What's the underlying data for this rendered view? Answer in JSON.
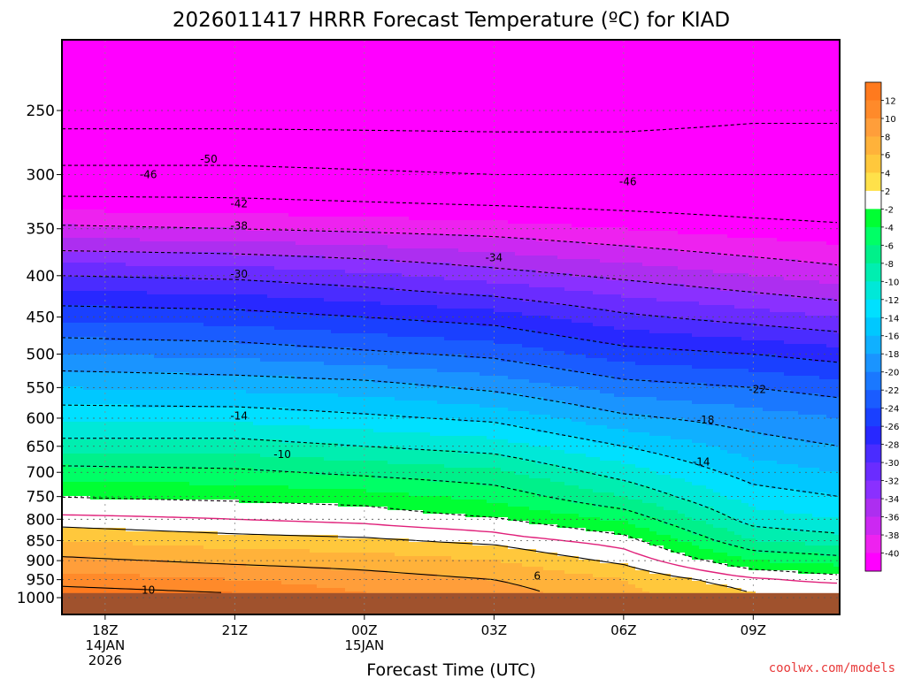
{
  "chart_data": {
    "type": "contour",
    "title": "2026011417 HRRR Forecast Temperature (ºC) for KIAD",
    "xlabel": "Forecast Time (UTC)",
    "credit": "coolwx.com/models",
    "x_ticks": [
      {
        "hour": 0,
        "lines": [
          "18Z",
          "14JAN",
          "2026"
        ]
      },
      {
        "hour": 3,
        "lines": [
          "21Z"
        ]
      },
      {
        "hour": 6,
        "lines": [
          "00Z",
          "15JAN"
        ]
      },
      {
        "hour": 9,
        "lines": [
          "03Z"
        ]
      },
      {
        "hour": 12,
        "lines": [
          "06Z"
        ]
      },
      {
        "hour": 15,
        "lines": [
          "09Z"
        ]
      }
    ],
    "xlim": [
      -1,
      17
    ],
    "y_ticks": [
      250,
      300,
      350,
      400,
      450,
      500,
      550,
      600,
      650,
      700,
      750,
      800,
      850,
      900,
      950,
      1000
    ],
    "ylim_hPa": [
      1030,
      200
    ],
    "ground_hPa": 987,
    "colorbar": {
      "labels": [
        "12",
        "10",
        "8",
        "6",
        "4",
        "2",
        "-2",
        "-4",
        "-6",
        "-8",
        "-10",
        "-12",
        "-14",
        "-16",
        "-18",
        "-20",
        "-22",
        "-24",
        "-26",
        "-28",
        "-30",
        "-32",
        "-34",
        "-36",
        "-38",
        "-40"
      ],
      "colors": [
        "#ff7a1e",
        "#ff8a2a",
        "#ff9e3a",
        "#ffb23a",
        "#ffc83c",
        "#ffe14a",
        "#ffffff",
        "#00ff33",
        "#00ff66",
        "#00f08a",
        "#00eeb0",
        "#00e8d8",
        "#00e0ff",
        "#00c8ff",
        "#10b0ff",
        "#1a94ff",
        "#1a78ff",
        "#1a5cff",
        "#1a40ff",
        "#2828ff",
        "#4a2cff",
        "#6a2cff",
        "#8a30ff",
        "#ad2ef0",
        "#cc28f2",
        "#ee22ef",
        "#ff00ff"
      ]
    },
    "temperature_profiles": [
      {
        "hour": -1,
        "levels": [
          [
            987,
            11
          ],
          [
            950,
            9
          ],
          [
            900,
            6.5
          ],
          [
            850,
            4
          ],
          [
            810,
            1.5
          ],
          [
            790,
            0
          ],
          [
            760,
            -1.5
          ],
          [
            700,
            -5
          ],
          [
            650,
            -9
          ],
          [
            600,
            -12.5
          ],
          [
            550,
            -16
          ],
          [
            500,
            -20
          ],
          [
            450,
            -24.5
          ],
          [
            400,
            -30
          ],
          [
            350,
            -37.5
          ],
          [
            300,
            -45
          ],
          [
            250,
            -52
          ],
          [
            200,
            -58
          ]
        ]
      },
      {
        "hour": 3,
        "levels": [
          [
            987,
            10
          ],
          [
            950,
            8
          ],
          [
            900,
            5.5
          ],
          [
            850,
            3
          ],
          [
            810,
            0.5
          ],
          [
            790,
            -0.5
          ],
          [
            760,
            -2
          ],
          [
            700,
            -5.5
          ],
          [
            650,
            -9
          ],
          [
            600,
            -12.5
          ],
          [
            550,
            -16.5
          ],
          [
            500,
            -20.5
          ],
          [
            450,
            -25
          ],
          [
            400,
            -30.5
          ],
          [
            350,
            -38
          ],
          [
            300,
            -45
          ],
          [
            250,
            -52
          ],
          [
            200,
            -58
          ]
        ]
      },
      {
        "hour": 6,
        "levels": [
          [
            987,
            8
          ],
          [
            950,
            7
          ],
          [
            900,
            5
          ],
          [
            850,
            2.5
          ],
          [
            820,
            0.5
          ],
          [
            800,
            -0.5
          ],
          [
            760,
            -2.5
          ],
          [
            700,
            -6.5
          ],
          [
            650,
            -10
          ],
          [
            600,
            -13.5
          ],
          [
            550,
            -17
          ],
          [
            500,
            -21.5
          ],
          [
            450,
            -26
          ],
          [
            400,
            -31.5
          ],
          [
            350,
            -38.5
          ],
          [
            300,
            -45.5
          ],
          [
            250,
            -52
          ],
          [
            200,
            -58
          ]
        ]
      },
      {
        "hour": 9,
        "levels": [
          [
            987,
            7
          ],
          [
            950,
            6
          ],
          [
            900,
            4
          ],
          [
            860,
            2
          ],
          [
            840,
            0.5
          ],
          [
            820,
            -0.5
          ],
          [
            780,
            -3
          ],
          [
            700,
            -7.5
          ],
          [
            650,
            -11
          ],
          [
            600,
            -14.5
          ],
          [
            550,
            -18.5
          ],
          [
            500,
            -22.5
          ],
          [
            450,
            -27
          ],
          [
            400,
            -33
          ],
          [
            350,
            -39
          ],
          [
            300,
            -46
          ],
          [
            250,
            -52
          ],
          [
            200,
            -58
          ]
        ]
      },
      {
        "hour": 12,
        "levels": [
          [
            987,
            4.5
          ],
          [
            950,
            4
          ],
          [
            920,
            2.5
          ],
          [
            900,
            1.5
          ],
          [
            880,
            0.5
          ],
          [
            860,
            -0.5
          ],
          [
            820,
            -3
          ],
          [
            750,
            -8
          ],
          [
            700,
            -11
          ],
          [
            650,
            -14
          ],
          [
            600,
            -17.5
          ],
          [
            550,
            -21
          ],
          [
            500,
            -25
          ],
          [
            450,
            -29.5
          ],
          [
            400,
            -34.5
          ],
          [
            350,
            -40
          ],
          [
            300,
            -46
          ],
          [
            250,
            -52
          ],
          [
            200,
            -58
          ]
        ]
      },
      {
        "hour": 15,
        "levels": [
          [
            987,
            2
          ],
          [
            970,
            1.5
          ],
          [
            950,
            0.5
          ],
          [
            940,
            -0.5
          ],
          [
            900,
            -4
          ],
          [
            850,
            -8
          ],
          [
            800,
            -11
          ],
          [
            750,
            -13
          ],
          [
            700,
            -15
          ],
          [
            650,
            -17
          ],
          [
            600,
            -19
          ],
          [
            550,
            -22
          ],
          [
            500,
            -26
          ],
          [
            450,
            -31
          ],
          [
            400,
            -36
          ],
          [
            350,
            -41
          ],
          [
            300,
            -46
          ],
          [
            250,
            -51
          ],
          [
            200,
            -56
          ]
        ]
      },
      {
        "hour": 17,
        "levels": [
          [
            987,
            1.5
          ],
          [
            970,
            0.8
          ],
          [
            960,
            0
          ],
          [
            950,
            -1
          ],
          [
            900,
            -5
          ],
          [
            850,
            -9
          ],
          [
            800,
            -12
          ],
          [
            750,
            -14
          ],
          [
            700,
            -16
          ],
          [
            650,
            -18
          ],
          [
            600,
            -20
          ],
          [
            550,
            -23
          ],
          [
            500,
            -27
          ],
          [
            450,
            -32
          ],
          [
            400,
            -37
          ],
          [
            350,
            -41.5
          ],
          [
            300,
            -46
          ],
          [
            250,
            -51
          ],
          [
            200,
            -56
          ]
        ]
      }
    ],
    "contour_levels": [
      -50,
      -46,
      -42,
      -38,
      -34,
      -30,
      -26,
      -22,
      -18,
      -14,
      -10,
      -6,
      -2,
      2,
      6,
      10
    ],
    "contour_labels": [
      {
        "text": "-50",
        "hour": 2.4,
        "hPa": 287
      },
      {
        "text": "-46",
        "hour": 1.0,
        "hPa": 300
      },
      {
        "text": "-46",
        "hour": 12.1,
        "hPa": 306
      },
      {
        "text": "-42",
        "hour": 3.1,
        "hPa": 326
      },
      {
        "text": "-38",
        "hour": 3.1,
        "hPa": 347
      },
      {
        "text": "-34",
        "hour": 9.0,
        "hPa": 380
      },
      {
        "text": "-30",
        "hour": 3.1,
        "hPa": 398
      },
      {
        "text": "-22",
        "hour": 15.1,
        "hPa": 553
      },
      {
        "text": "-18",
        "hour": 13.9,
        "hPa": 603
      },
      {
        "text": "-14",
        "hour": 3.1,
        "hPa": 596
      },
      {
        "text": "-14",
        "hour": 13.8,
        "hPa": 680
      },
      {
        "text": "-10",
        "hour": 4.1,
        "hPa": 665
      },
      {
        "text": "6",
        "hour": 10.0,
        "hPa": 940
      },
      {
        "text": "10",
        "hour": 1.0,
        "hPa": 979
      }
    ]
  }
}
